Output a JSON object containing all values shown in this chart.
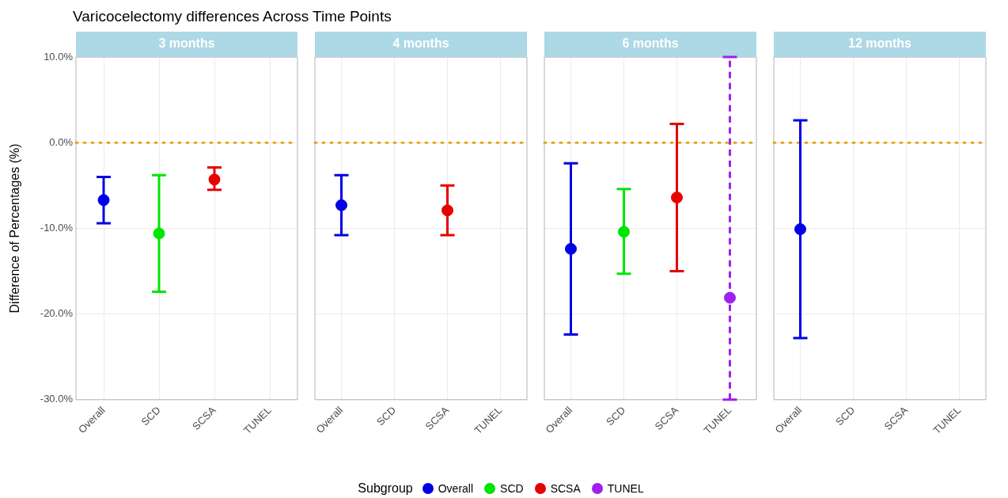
{
  "chart_data": [
    {
      "type": "scatter",
      "title": "Varicocelectomy differences Across Time Points",
      "subtitle": "3 months",
      "ylabel": "Difference of Percentages (%)",
      "legend_title": "Subgroup",
      "legend": "bottom",
      "grid": true,
      "marker": "circle",
      "categories": [
        "Overall",
        "SCD",
        "SCSA",
        "TUNEL"
      ],
      "ylim": [
        -30,
        10
      ],
      "yticks": [
        {
          "value": -30,
          "label": "-30.0%"
        },
        {
          "value": -20,
          "label": "-20.0%"
        },
        {
          "value": -10,
          "label": "-10.0%"
        },
        {
          "value": 0,
          "label": "0.0%"
        },
        {
          "value": 10,
          "label": "10.0%"
        }
      ],
      "ref_lines": [
        {
          "axis": "y",
          "value": 0,
          "color": "#e8a317",
          "line_style": "dotted"
        }
      ],
      "series": [
        {
          "name": "Overall",
          "color": "#0000e6",
          "values": [
            -6.7,
            null,
            null,
            null
          ],
          "errors": [
            [
              -9.4,
              -4.0
            ],
            null,
            null,
            null
          ]
        },
        {
          "name": "SCD",
          "color": "#00e600",
          "values": [
            null,
            -10.6,
            null,
            null
          ],
          "errors": [
            null,
            [
              -17.4,
              -3.8
            ],
            null,
            null
          ]
        },
        {
          "name": "SCSA",
          "color": "#e60000",
          "values": [
            null,
            null,
            -4.3,
            null
          ],
          "errors": [
            null,
            null,
            [
              -5.5,
              -2.9
            ],
            null
          ]
        },
        {
          "name": "TUNEL",
          "color": "#a020f0",
          "values": [
            null,
            null,
            null,
            null
          ],
          "errors": [
            null,
            null,
            null,
            null
          ]
        }
      ]
    },
    {
      "type": "scatter",
      "subtitle": "4 months",
      "grid": true,
      "marker": "circle",
      "tick_labels": "x",
      "categories": [
        "Overall",
        "SCD",
        "SCSA",
        "TUNEL"
      ],
      "ylim": [
        -30,
        10
      ],
      "yticks": [
        -30,
        -20,
        -10,
        0,
        10
      ],
      "ref_lines": [
        {
          "axis": "y",
          "value": 0,
          "color": "#e8a317",
          "line_style": "dotted"
        }
      ],
      "series": [
        {
          "color": "#0000e6",
          "values": [
            -7.3,
            null,
            null,
            null
          ],
          "errors": [
            [
              -10.8,
              -3.8
            ],
            null,
            null,
            null
          ]
        },
        {
          "color": "#00e600",
          "values": [
            null,
            null,
            null,
            null
          ],
          "errors": [
            null,
            null,
            null,
            null
          ]
        },
        {
          "color": "#e60000",
          "values": [
            null,
            null,
            -7.9,
            null
          ],
          "errors": [
            null,
            null,
            [
              -10.8,
              -5.0
            ],
            null
          ]
        },
        {
          "color": "#a020f0",
          "values": [
            null,
            null,
            null,
            null
          ],
          "errors": [
            null,
            null,
            null,
            null
          ]
        }
      ]
    },
    {
      "type": "scatter",
      "subtitle": "6 months",
      "grid": true,
      "marker": "circle",
      "tick_labels": "x",
      "categories": [
        "Overall",
        "SCD",
        "SCSA",
        "TUNEL"
      ],
      "ylim": [
        -30,
        10
      ],
      "yticks": [
        -30,
        -20,
        -10,
        0,
        10
      ],
      "ref_lines": [
        {
          "axis": "y",
          "value": 0,
          "color": "#e8a317",
          "line_style": "dotted"
        }
      ],
      "series": [
        {
          "color": "#0000e6",
          "values": [
            -12.4,
            null,
            null,
            null
          ],
          "errors": [
            [
              -22.4,
              -2.4
            ],
            null,
            null,
            null
          ]
        },
        {
          "color": "#00e600",
          "values": [
            null,
            -10.4,
            null,
            null
          ],
          "errors": [
            null,
            [
              -15.3,
              -5.4
            ],
            null,
            null
          ]
        },
        {
          "color": "#e60000",
          "values": [
            null,
            null,
            -6.4,
            null
          ],
          "errors": [
            null,
            null,
            [
              -15.0,
              2.2
            ],
            null
          ]
        },
        {
          "color": "#a020f0",
          "line_style": "dashed",
          "values": [
            null,
            null,
            null,
            -18.1
          ],
          "errors": [
            null,
            null,
            null,
            [
              -30,
              10
            ]
          ]
        }
      ]
    },
    {
      "type": "scatter",
      "subtitle": "12 months",
      "grid": true,
      "marker": "circle",
      "tick_labels": "x",
      "categories": [
        "Overall",
        "SCD",
        "SCSA",
        "TUNEL"
      ],
      "ylim": [
        -30,
        10
      ],
      "yticks": [
        -30,
        -20,
        -10,
        0,
        10
      ],
      "ref_lines": [
        {
          "axis": "y",
          "value": 0,
          "color": "#e8a317",
          "line_style": "dotted"
        }
      ],
      "series": [
        {
          "color": "#0000e6",
          "values": [
            -10.1,
            null,
            null,
            null
          ],
          "errors": [
            [
              -22.8,
              2.6
            ],
            null,
            null,
            null
          ]
        },
        {
          "color": "#00e600",
          "values": [
            null,
            null,
            null,
            null
          ],
          "errors": [
            null,
            null,
            null,
            null
          ]
        },
        {
          "color": "#e60000",
          "values": [
            null,
            null,
            null,
            null
          ],
          "errors": [
            null,
            null,
            null,
            null
          ]
        },
        {
          "color": "#a020f0",
          "values": [
            null,
            null,
            null,
            null
          ],
          "errors": [
            null,
            null,
            null,
            null
          ]
        }
      ]
    }
  ]
}
